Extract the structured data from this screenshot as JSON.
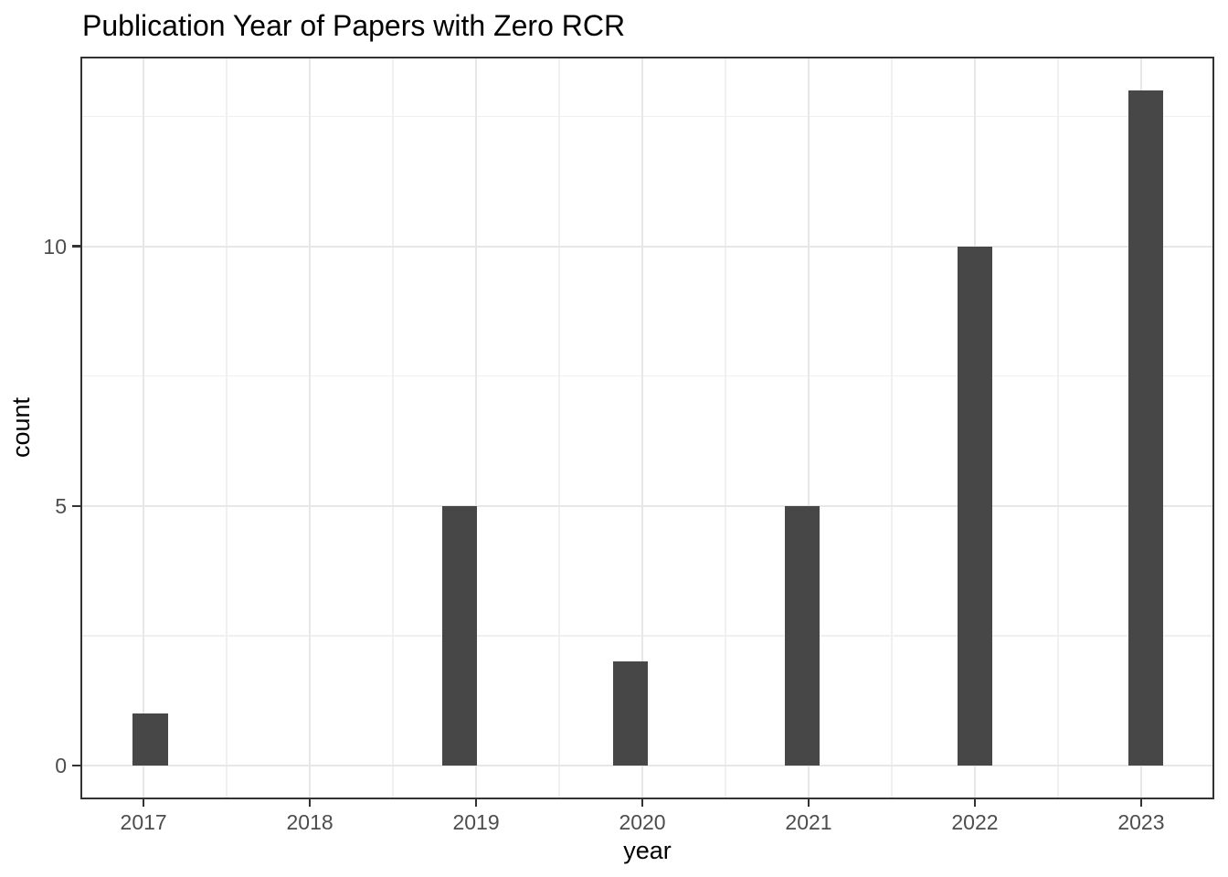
{
  "chart_data": {
    "type": "bar",
    "subtype": "histogram",
    "title": "Publication Year of Papers with Zero RCR",
    "xlabel": "year",
    "ylabel": "count",
    "categories": [
      2017,
      2018,
      2019,
      2020,
      2021,
      2022,
      2023
    ],
    "values": [
      1,
      0,
      5,
      2,
      5,
      10,
      13
    ],
    "bars": [
      {
        "x": 2017.04,
        "count": 1
      },
      {
        "x": 2018.9,
        "count": 5
      },
      {
        "x": 2019.93,
        "count": 2
      },
      {
        "x": 2020.96,
        "count": 5
      },
      {
        "x": 2022.0,
        "count": 10
      },
      {
        "x": 2023.03,
        "count": 13
      }
    ],
    "bar_width": 0.21,
    "x_ticks": [
      2017,
      2018,
      2019,
      2020,
      2021,
      2022,
      2023
    ],
    "y_ticks": [
      0,
      5,
      10
    ],
    "x_minor": [
      2017.5,
      2018.5,
      2019.5,
      2020.5,
      2021.5,
      2022.5
    ],
    "y_minor": [
      2.5,
      7.5,
      12.5
    ],
    "x_range": [
      2016.62,
      2023.44
    ],
    "y_range": [
      -0.65,
      13.65
    ],
    "grid": true,
    "legend": "none",
    "colors": {
      "bar": "#474747",
      "grid_major": "#E7E7E7",
      "grid_minor": "#F0F0F0",
      "panel_border": "#333333",
      "tick": "#333333",
      "tick_label": "#4D4D4D",
      "title": "#000000",
      "axis_title": "#000000",
      "background": "#FFFFFF"
    }
  }
}
